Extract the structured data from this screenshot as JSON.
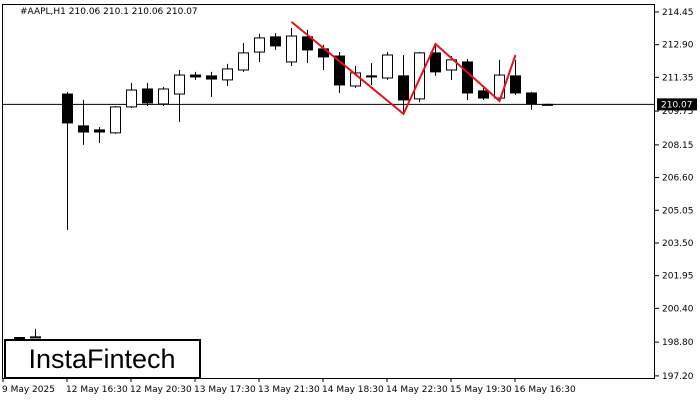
{
  "chart_data": {
    "type": "candlestick",
    "symbol": "#AAPL,H1",
    "header_values": [
      210.06,
      210.1,
      210.06,
      210.07
    ],
    "watermark": "InstaFintech",
    "categories": [
      "9 May 2025",
      null,
      null,
      null,
      "12 May 16:30",
      null,
      null,
      null,
      "12 May 20:30",
      null,
      null,
      null,
      "13 May 17:30",
      null,
      null,
      null,
      "13 May 21:30",
      null,
      null,
      null,
      "14 May 18:30",
      null,
      null,
      null,
      "14 May 22:30",
      null,
      null,
      null,
      "15 May 19:30",
      null,
      null,
      null,
      "16 May 16:30",
      null,
      null
    ],
    "open": [
      null,
      199.0,
      199.0,
      null,
      210.56,
      209.05,
      208.86,
      208.72,
      209.95,
      210.8,
      210.09,
      210.56,
      211.46,
      211.42,
      211.23,
      211.7,
      212.55,
      213.27,
      212.08,
      213.27,
      212.7,
      212.36,
      210.94,
      211.42,
      211.32,
      211.42,
      210.33,
      212.51,
      211.7,
      212.08,
      210.71,
      210.37,
      211.42,
      210.61,
      210.07
    ],
    "high": [
      null,
      199.05,
      199.43,
      null,
      210.66,
      210.28,
      209.0,
      209.99,
      211.09,
      211.09,
      210.9,
      211.7,
      211.61,
      211.61,
      211.99,
      212.98,
      213.41,
      213.45,
      213.69,
      213.6,
      212.89,
      212.55,
      211.89,
      212.03,
      212.55,
      212.41,
      212.55,
      212.93,
      212.36,
      212.22,
      210.85,
      212.18,
      212.18,
      210.66,
      210.1
    ],
    "low": [
      null,
      198.95,
      199.0,
      null,
      204.12,
      208.15,
      208.24,
      208.67,
      209.9,
      209.99,
      209.99,
      209.24,
      211.23,
      210.42,
      210.94,
      211.61,
      212.08,
      212.65,
      211.89,
      212.03,
      211.7,
      210.61,
      210.85,
      210.99,
      211.23,
      209.71,
      210.18,
      211.42,
      211.23,
      210.28,
      210.28,
      210.23,
      210.52,
      209.81,
      210.06
    ],
    "close": [
      null,
      199.02,
      199.05,
      null,
      209.19,
      208.76,
      208.76,
      209.95,
      210.75,
      210.14,
      210.8,
      211.46,
      211.37,
      211.27,
      211.75,
      212.51,
      213.22,
      212.84,
      213.31,
      212.65,
      212.32,
      210.99,
      211.56,
      211.37,
      212.41,
      210.28,
      212.51,
      211.61,
      212.18,
      210.61,
      210.37,
      211.46,
      210.61,
      210.09,
      210.07
    ],
    "up_color": "#ffffff",
    "down_color": "#000000",
    "last_price": 210.07,
    "pattern": {
      "color": "#e8101a",
      "x": [
        18,
        25,
        27,
        31,
        32
      ],
      "values": [
        213.98,
        209.62,
        212.93,
        210.23,
        212.41
      ]
    },
    "ylim": [
      197.1,
      214.78
    ],
    "yticks": [
      214.45,
      {
        "value": 212.9,
        "label": "212.90"
      },
      211.35,
      209.75,
      208.15,
      {
        "value": 206.6,
        "label": "206.60"
      },
      205.05,
      {
        "value": 203.5,
        "label": "203.50"
      },
      201.95,
      {
        "value": 200.4,
        "label": "200.40"
      },
      {
        "value": 198.8,
        "label": "198.80"
      },
      {
        "value": 197.2,
        "label": "197.20"
      }
    ]
  }
}
